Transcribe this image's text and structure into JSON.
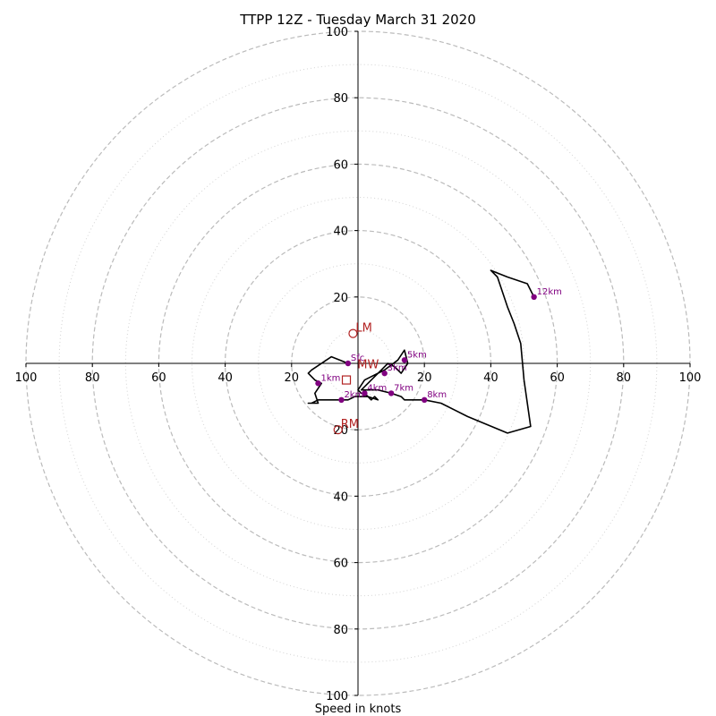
{
  "chart_data": {
    "type": "line",
    "title": "TTPP 12Z - Tuesday March 31 2020",
    "xlabel": "Speed in knots",
    "ylabel": "",
    "xlim": [
      -100,
      100
    ],
    "ylim": [
      -100,
      100
    ],
    "ring_values": [
      20,
      40,
      60,
      80,
      100
    ],
    "x_ticks": [
      "100",
      "80",
      "60",
      "40",
      "20",
      "20",
      "40",
      "60",
      "80",
      "100"
    ],
    "y_ticks": [
      "100",
      "80",
      "60",
      "40",
      "20",
      "20",
      "40",
      "60",
      "80",
      "100"
    ],
    "grid": true,
    "hodograph": [
      [
        -3,
        0
      ],
      [
        -8,
        2
      ],
      [
        -14,
        -2
      ],
      [
        -15,
        -3
      ],
      [
        -13,
        -5
      ],
      [
        -11,
        -6
      ],
      [
        -13,
        -9
      ],
      [
        -12,
        -12
      ],
      [
        -14,
        -12
      ],
      [
        -15,
        -12
      ],
      [
        -14,
        -12
      ],
      [
        -12,
        -11
      ],
      [
        -6,
        -11
      ],
      [
        -3,
        -11
      ],
      [
        -1,
        -10
      ],
      [
        3,
        -10
      ],
      [
        4,
        -11
      ],
      [
        5,
        -10
      ],
      [
        6,
        -11
      ],
      [
        3,
        -10
      ],
      [
        2,
        -9
      ],
      [
        1,
        -9
      ],
      [
        0,
        -8
      ],
      [
        2,
        -5
      ],
      [
        4,
        -4
      ],
      [
        8,
        -2
      ],
      [
        12,
        1
      ],
      [
        14,
        4
      ],
      [
        15,
        0
      ],
      [
        13,
        -3
      ],
      [
        11,
        -1
      ],
      [
        9,
        0
      ],
      [
        7,
        -2
      ],
      [
        5,
        -4
      ],
      [
        3,
        -6
      ],
      [
        1,
        -8
      ],
      [
        3,
        -8
      ],
      [
        6,
        -8
      ],
      [
        10,
        -9
      ],
      [
        13,
        -10
      ],
      [
        14,
        -11
      ],
      [
        16,
        -11
      ],
      [
        20,
        -11
      ],
      [
        25,
        -12
      ],
      [
        33,
        -16
      ],
      [
        45,
        -21
      ],
      [
        52,
        -19
      ],
      [
        50,
        -5
      ],
      [
        49,
        6
      ],
      [
        47,
        12
      ],
      [
        45,
        17
      ],
      [
        42,
        26
      ],
      [
        40,
        28
      ],
      [
        45,
        26
      ],
      [
        51,
        24
      ],
      [
        53,
        20
      ]
    ],
    "heights": [
      {
        "label": "Sfc",
        "u": -3,
        "v": 0
      },
      {
        "label": "1km",
        "u": -12,
        "v": -6
      },
      {
        "label": "2km",
        "u": -5,
        "v": -11
      },
      {
        "label": "3km",
        "u": 8,
        "v": -3
      },
      {
        "label": "4km",
        "u": 2,
        "v": -9
      },
      {
        "label": "5km",
        "u": 14,
        "v": 1
      },
      {
        "label": "7km",
        "u": 10,
        "v": -9
      },
      {
        "label": "8km",
        "u": 20,
        "v": -11
      },
      {
        "label": "12km",
        "u": 53,
        "v": 20
      }
    ],
    "motion_markers": [
      {
        "label": "LM",
        "u": -1.5,
        "v": 9,
        "shape": "circle"
      },
      {
        "label": "RM",
        "u": -6,
        "v": -20,
        "shape": "circle"
      },
      {
        "label": "",
        "u": -3.5,
        "v": -5,
        "shape": "square"
      },
      {
        "label": "MW",
        "u": -1,
        "v": -2,
        "shape": "none"
      }
    ],
    "colors": {
      "hodograph": "#000000",
      "heights": "#800080",
      "markers": "#b22222",
      "grid": "#bbbbbb"
    }
  }
}
